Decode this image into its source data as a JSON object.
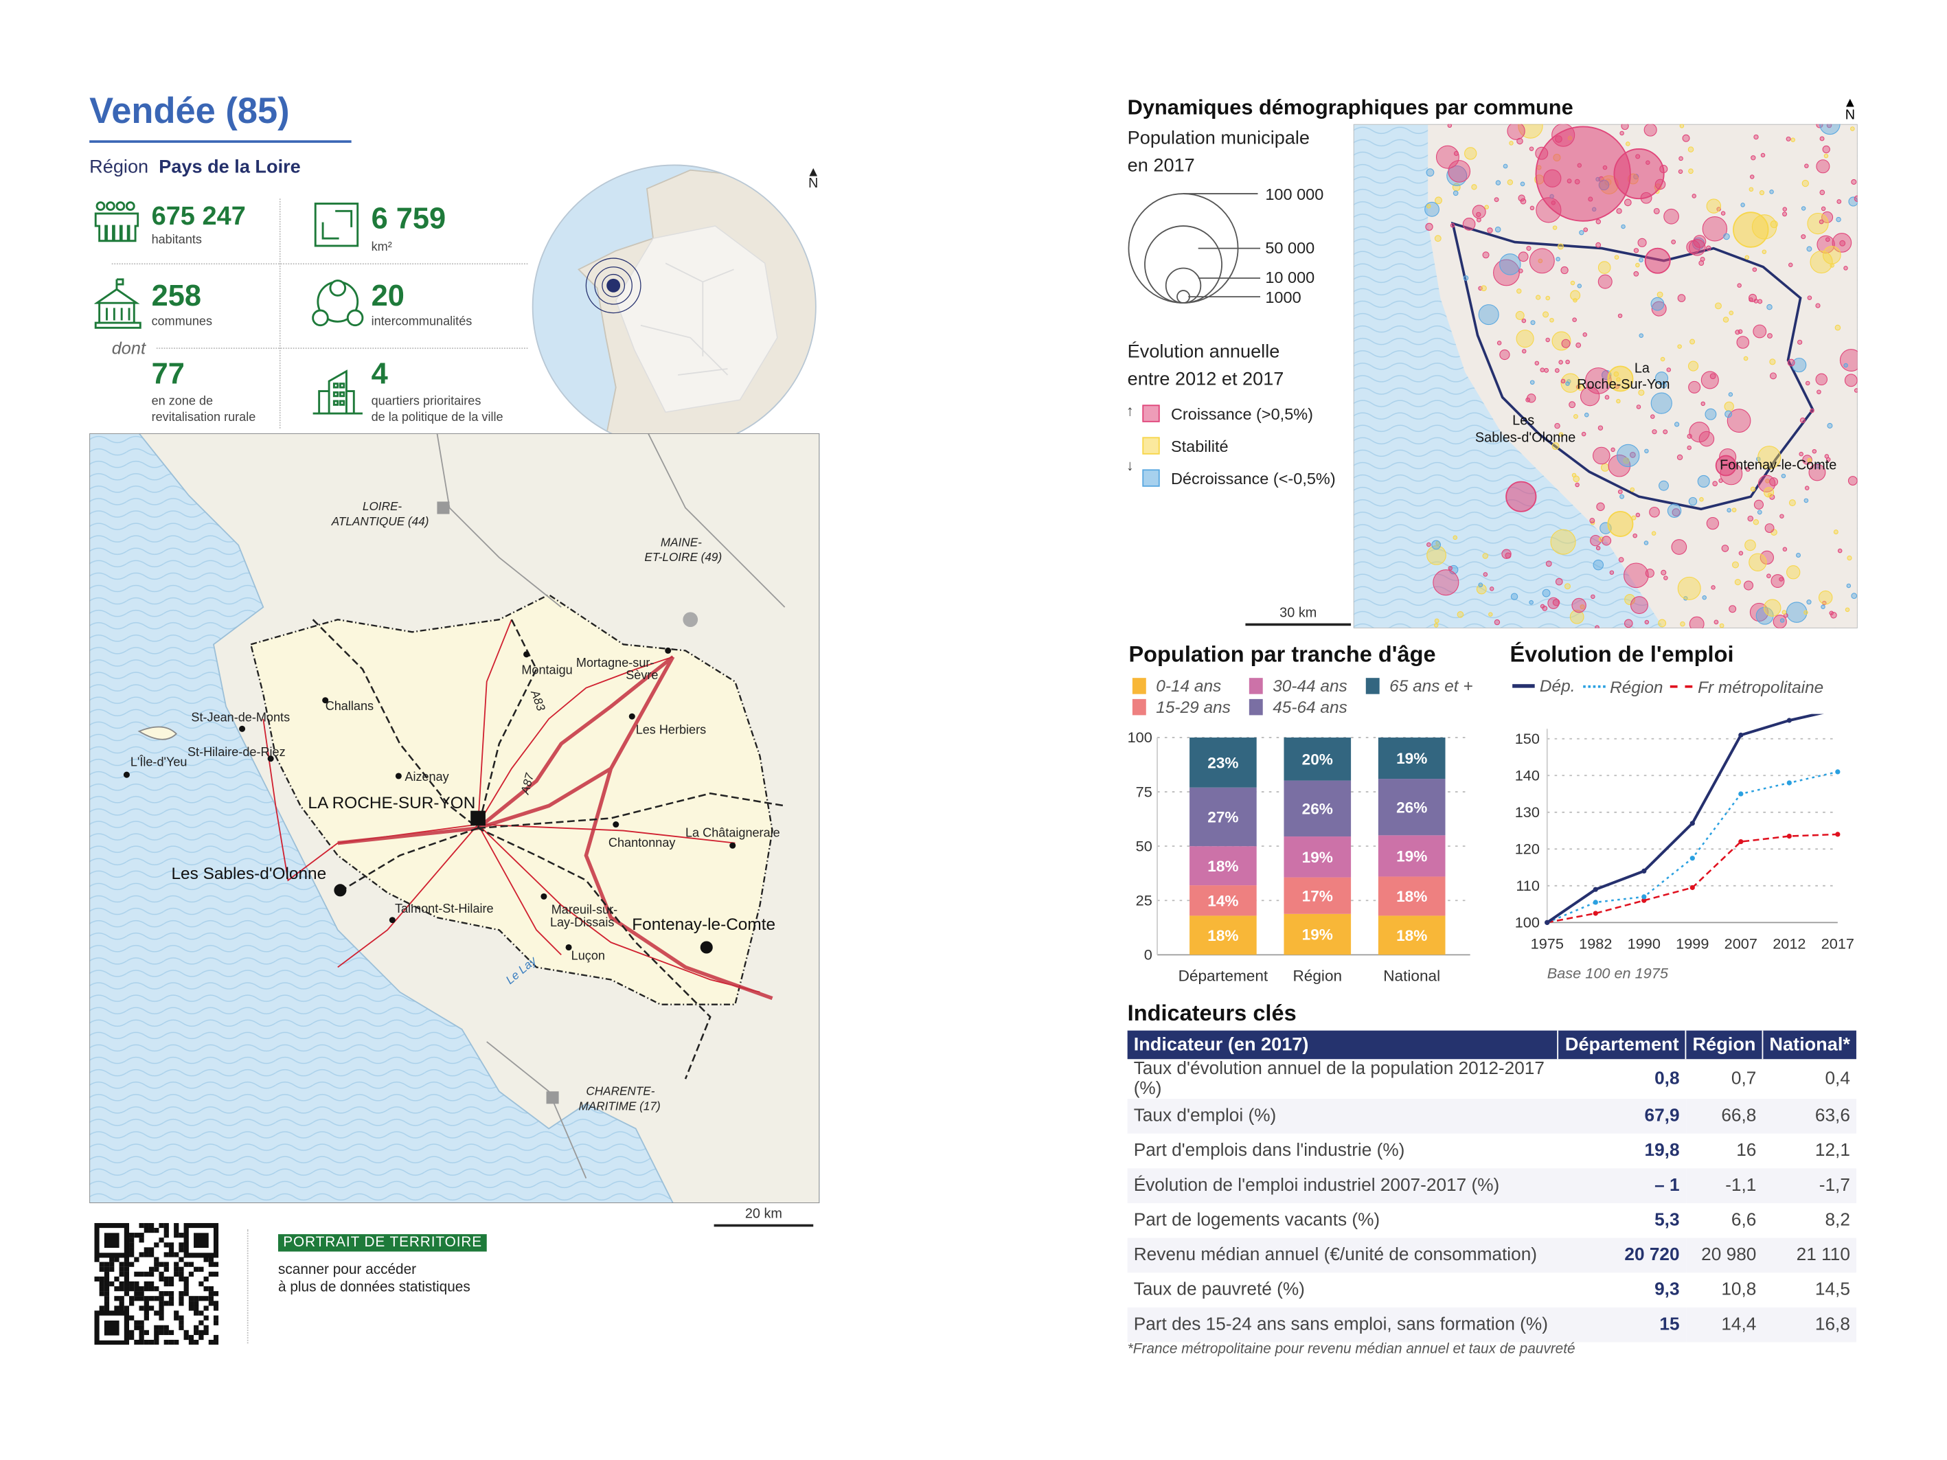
{
  "header": {
    "title": "Vendée (85)",
    "region_label": "Région",
    "region_name": "Pays de la Loire"
  },
  "stats": [
    {
      "value": "675 247",
      "label": "habitants",
      "icon": "people-icon"
    },
    {
      "value": "6 759",
      "label": "km²",
      "icon": "area-icon"
    },
    {
      "value": "258",
      "label": "communes",
      "icon": "town-hall-icon"
    },
    {
      "value": "20",
      "label": "intercommunalités",
      "icon": "network-icon"
    },
    {
      "value": "77",
      "label_line1": "en zone de",
      "label_line2": "revitalisation rurale"
    },
    {
      "value": "4",
      "label_line1": "quartiers prioritaires",
      "label_line2": "de la politique de la ville",
      "icon": "buildings-icon"
    }
  ],
  "dont_label": "dont",
  "north_label": "N",
  "main_map": {
    "scale_label": "20 km",
    "labels": {
      "loire_atlantique_1": "LOIRE-",
      "loire_atlantique_2": "ATLANTIQUE (44)",
      "maine_et_loire_1": "MAINE-",
      "maine_et_loire_2": "ET-LOIRE (49)",
      "charente_1": "CHARENTE-",
      "charente_2": "MARITIME (17)",
      "montaigu": "Montaigu",
      "mortagne_1": "Mortagne-sur-",
      "mortagne_2": "Sèvre",
      "challans": "Challans",
      "st_jean": "St-Jean-de-Monts",
      "st_hilaire_riez": "St-Hilaire-de-Riez",
      "ile_yeu": "L'Île-d'Yeu",
      "les_herbiers": "Les Herbiers",
      "aizenay": "Aizenay",
      "la_roche": "LA ROCHE-SUR-YON",
      "sables": "Les Sables-d'Olonne",
      "chantonnay": "Chantonnay",
      "chataigneraie": "La Châtaigneraie",
      "talmont": "Talmont-St-Hilaire",
      "mareuil_1": "Mareuil-sur-",
      "mareuil_2": "Lay-Dissais",
      "fontenay": "Fontenay-le-Comte",
      "lucon": "Luçon",
      "le_lay": "Le Lay",
      "a87": "A87",
      "a83": "A83"
    }
  },
  "footer": {
    "badge": "PORTRAIT DE TERRITOIRE",
    "line1": "scanner pour accéder",
    "line2": "à plus de données statistiques"
  },
  "demo_map": {
    "title": "Dynamiques démographiques par commune",
    "pop_title_1": "Population municipale",
    "pop_title_2": "en 2017",
    "sizes": [
      "100 000",
      "50 000",
      "10 000",
      "1000"
    ],
    "evol_title_1": "Évolution annuelle",
    "evol_title_2": "entre 2012 et 2017",
    "classes": [
      {
        "label": "Croissance (>0,5%)",
        "color": "#e0457a"
      },
      {
        "label": "Stabilité",
        "color": "#f7d64a"
      },
      {
        "label": "Décroissance (<-0,5%)",
        "color": "#5aa8e0"
      }
    ],
    "scale_label": "30 km",
    "labels": {
      "la_roche_1": "La",
      "la_roche_2": "Roche-Sur-Yon",
      "sables_1": "Les",
      "sables_2": "Sables-d'Olonne",
      "fontenay": "Fontenay-le-Comte"
    }
  },
  "chart_data": [
    {
      "type": "bar",
      "title": "Population par tranche d'âge",
      "categories": [
        "Département",
        "Région",
        "National"
      ],
      "yticks": [
        "0",
        "25",
        "50",
        "75",
        "100"
      ],
      "ylim": [
        0,
        100
      ],
      "series": [
        {
          "name": "0-14 ans",
          "color": "#f8b738",
          "values": [
            18,
            19,
            18
          ],
          "labels": [
            "18%",
            "19%",
            "18%"
          ]
        },
        {
          "name": "15-29 ans",
          "color": "#ee8080",
          "values": [
            14,
            17,
            18
          ],
          "labels": [
            "14%",
            "17%",
            "18%"
          ]
        },
        {
          "name": "30-44 ans",
          "color": "#cc72a8",
          "values": [
            18,
            19,
            19
          ],
          "labels": [
            "18%",
            "19%",
            "19%"
          ]
        },
        {
          "name": "45-64 ans",
          "color": "#7a6fa3",
          "values": [
            27,
            26,
            26
          ],
          "labels": [
            "27%",
            "26%",
            "26%"
          ]
        },
        {
          "name": "65 ans et +",
          "color": "#336680",
          "values": [
            23,
            20,
            19
          ],
          "labels": [
            "23%",
            "20%",
            "19%"
          ]
        }
      ]
    },
    {
      "type": "line",
      "title": "Évolution de l'emploi",
      "x": [
        "1975",
        "1982",
        "1990",
        "1999",
        "2007",
        "2012",
        "2017"
      ],
      "yticks": [
        "100",
        "110",
        "120",
        "130",
        "140",
        "150"
      ],
      "ylim": [
        100,
        158
      ],
      "note": "Base 100 en 1975",
      "series": [
        {
          "name": "Dép.",
          "color": "#25306e",
          "style": "solid",
          "values": [
            100,
            109,
            114,
            127,
            151,
            155,
            158
          ]
        },
        {
          "name": "Région",
          "color": "#2aa0e0",
          "style": "dotted",
          "values": [
            100,
            105.5,
            107,
            117.5,
            135,
            138,
            141
          ]
        },
        {
          "name": "Fr métropolitaine",
          "color": "#e0101e",
          "style": "dashed",
          "values": [
            100,
            102.5,
            106,
            109.5,
            122,
            123.5,
            124
          ]
        }
      ]
    }
  ],
  "indicators": {
    "title": "Indicateurs clés",
    "headers": [
      "Indicateur (en 2017)",
      "Département",
      "Région",
      "National*"
    ],
    "rows": [
      [
        "Taux d'évolution annuel de la population 2012-2017 (%)",
        "0,8",
        "0,7",
        "0,4"
      ],
      [
        "Taux d'emploi (%)",
        "67,9",
        "66,8",
        "63,6"
      ],
      [
        "Part d'emplois dans l'industrie (%)",
        "19,8",
        "16",
        "12,1"
      ],
      [
        "Évolution de l'emploi industriel 2007-2017 (%)",
        "– 1",
        "-1,1",
        "-1,7"
      ],
      [
        "Part de logements vacants (%)",
        "5,3",
        "6,6",
        "8,2"
      ],
      [
        "Revenu médian annuel (€/unité de consommation)",
        "20 720",
        "20 980",
        "21 110"
      ],
      [
        "Taux de pauvreté (%)",
        "9,3",
        "10,8",
        "14,5"
      ],
      [
        "Part des 15-24 ans sans emploi, sans formation (%)",
        "15",
        "14,4",
        "16,8"
      ]
    ],
    "footnote": "*France métropolitaine pour revenu médian annuel et taux de pauvreté"
  }
}
